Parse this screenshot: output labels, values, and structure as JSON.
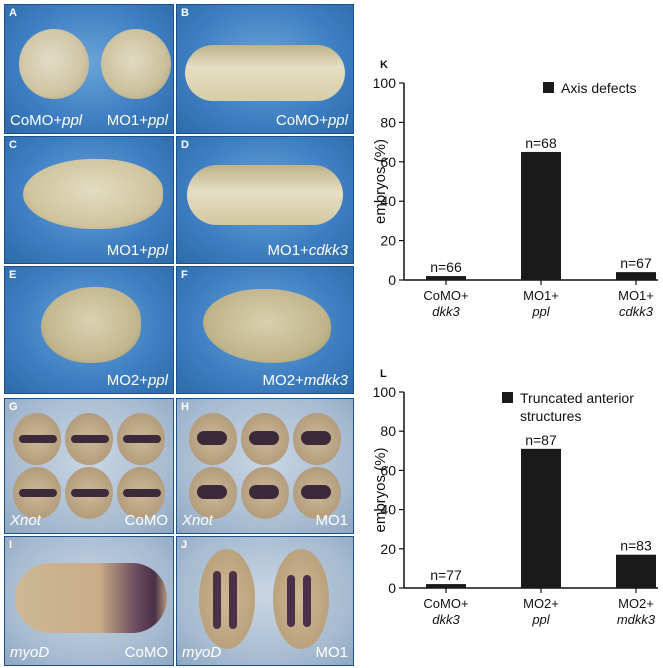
{
  "panels": [
    {
      "id": "A",
      "caption_left": "CoMO+",
      "caption_left_italic": "ppl",
      "caption_right": "MO1+",
      "caption_right_italic": "ppl"
    },
    {
      "id": "B",
      "caption_right": "CoMO+",
      "caption_right_italic": "ppl"
    },
    {
      "id": "C",
      "caption_right": "MO1+",
      "caption_right_italic": "ppl"
    },
    {
      "id": "D",
      "caption_right": "MO1+",
      "caption_right_italic": "cdkk3"
    },
    {
      "id": "E",
      "caption_right": "MO2+",
      "caption_right_italic": "ppl"
    },
    {
      "id": "F",
      "caption_right": "MO2+",
      "caption_right_italic": "mdkk3"
    },
    {
      "id": "G",
      "caption_left_italic": "Xnot",
      "caption_right": "CoMO"
    },
    {
      "id": "H",
      "caption_left_italic": "Xnot",
      "caption_right": "MO1"
    },
    {
      "id": "I",
      "caption_left_italic": "myoD",
      "caption_right": "CoMO"
    },
    {
      "id": "J",
      "caption_left_italic": "myoD",
      "caption_right": "MO1"
    }
  ],
  "chart_data": [
    {
      "type": "bar",
      "panel_label": "K",
      "title": "",
      "ylabel": "embryos (%)",
      "ylim": [
        0,
        100
      ],
      "yticks": [
        0,
        20,
        40,
        60,
        80,
        100
      ],
      "legend": "Axis defects",
      "legend_lines": [
        "Axis defects"
      ],
      "categories": [
        [
          "CoMO+",
          "dkk3"
        ],
        [
          "MO1+",
          "ppl"
        ],
        [
          "MO1+",
          "cdkk3"
        ]
      ],
      "values": [
        2,
        65,
        4
      ],
      "n_labels": [
        "n=66",
        "n=68",
        "n=67"
      ],
      "bar_color": "#1a1a1a"
    },
    {
      "type": "bar",
      "panel_label": "L",
      "title": "",
      "ylabel": "embryos (%)",
      "ylim": [
        0,
        100
      ],
      "yticks": [
        0,
        20,
        40,
        60,
        80,
        100
      ],
      "legend": "Truncated anterior structures",
      "legend_lines": [
        "Truncated anterior",
        "structures"
      ],
      "categories": [
        [
          "CoMO+",
          "dkk3"
        ],
        [
          "MO2+",
          "ppl"
        ],
        [
          "MO2+",
          "mdkk3"
        ]
      ],
      "values": [
        2,
        71,
        17
      ],
      "n_labels": [
        "n=77",
        "n=87",
        "n=83"
      ],
      "bar_color": "#1a1a1a"
    }
  ]
}
